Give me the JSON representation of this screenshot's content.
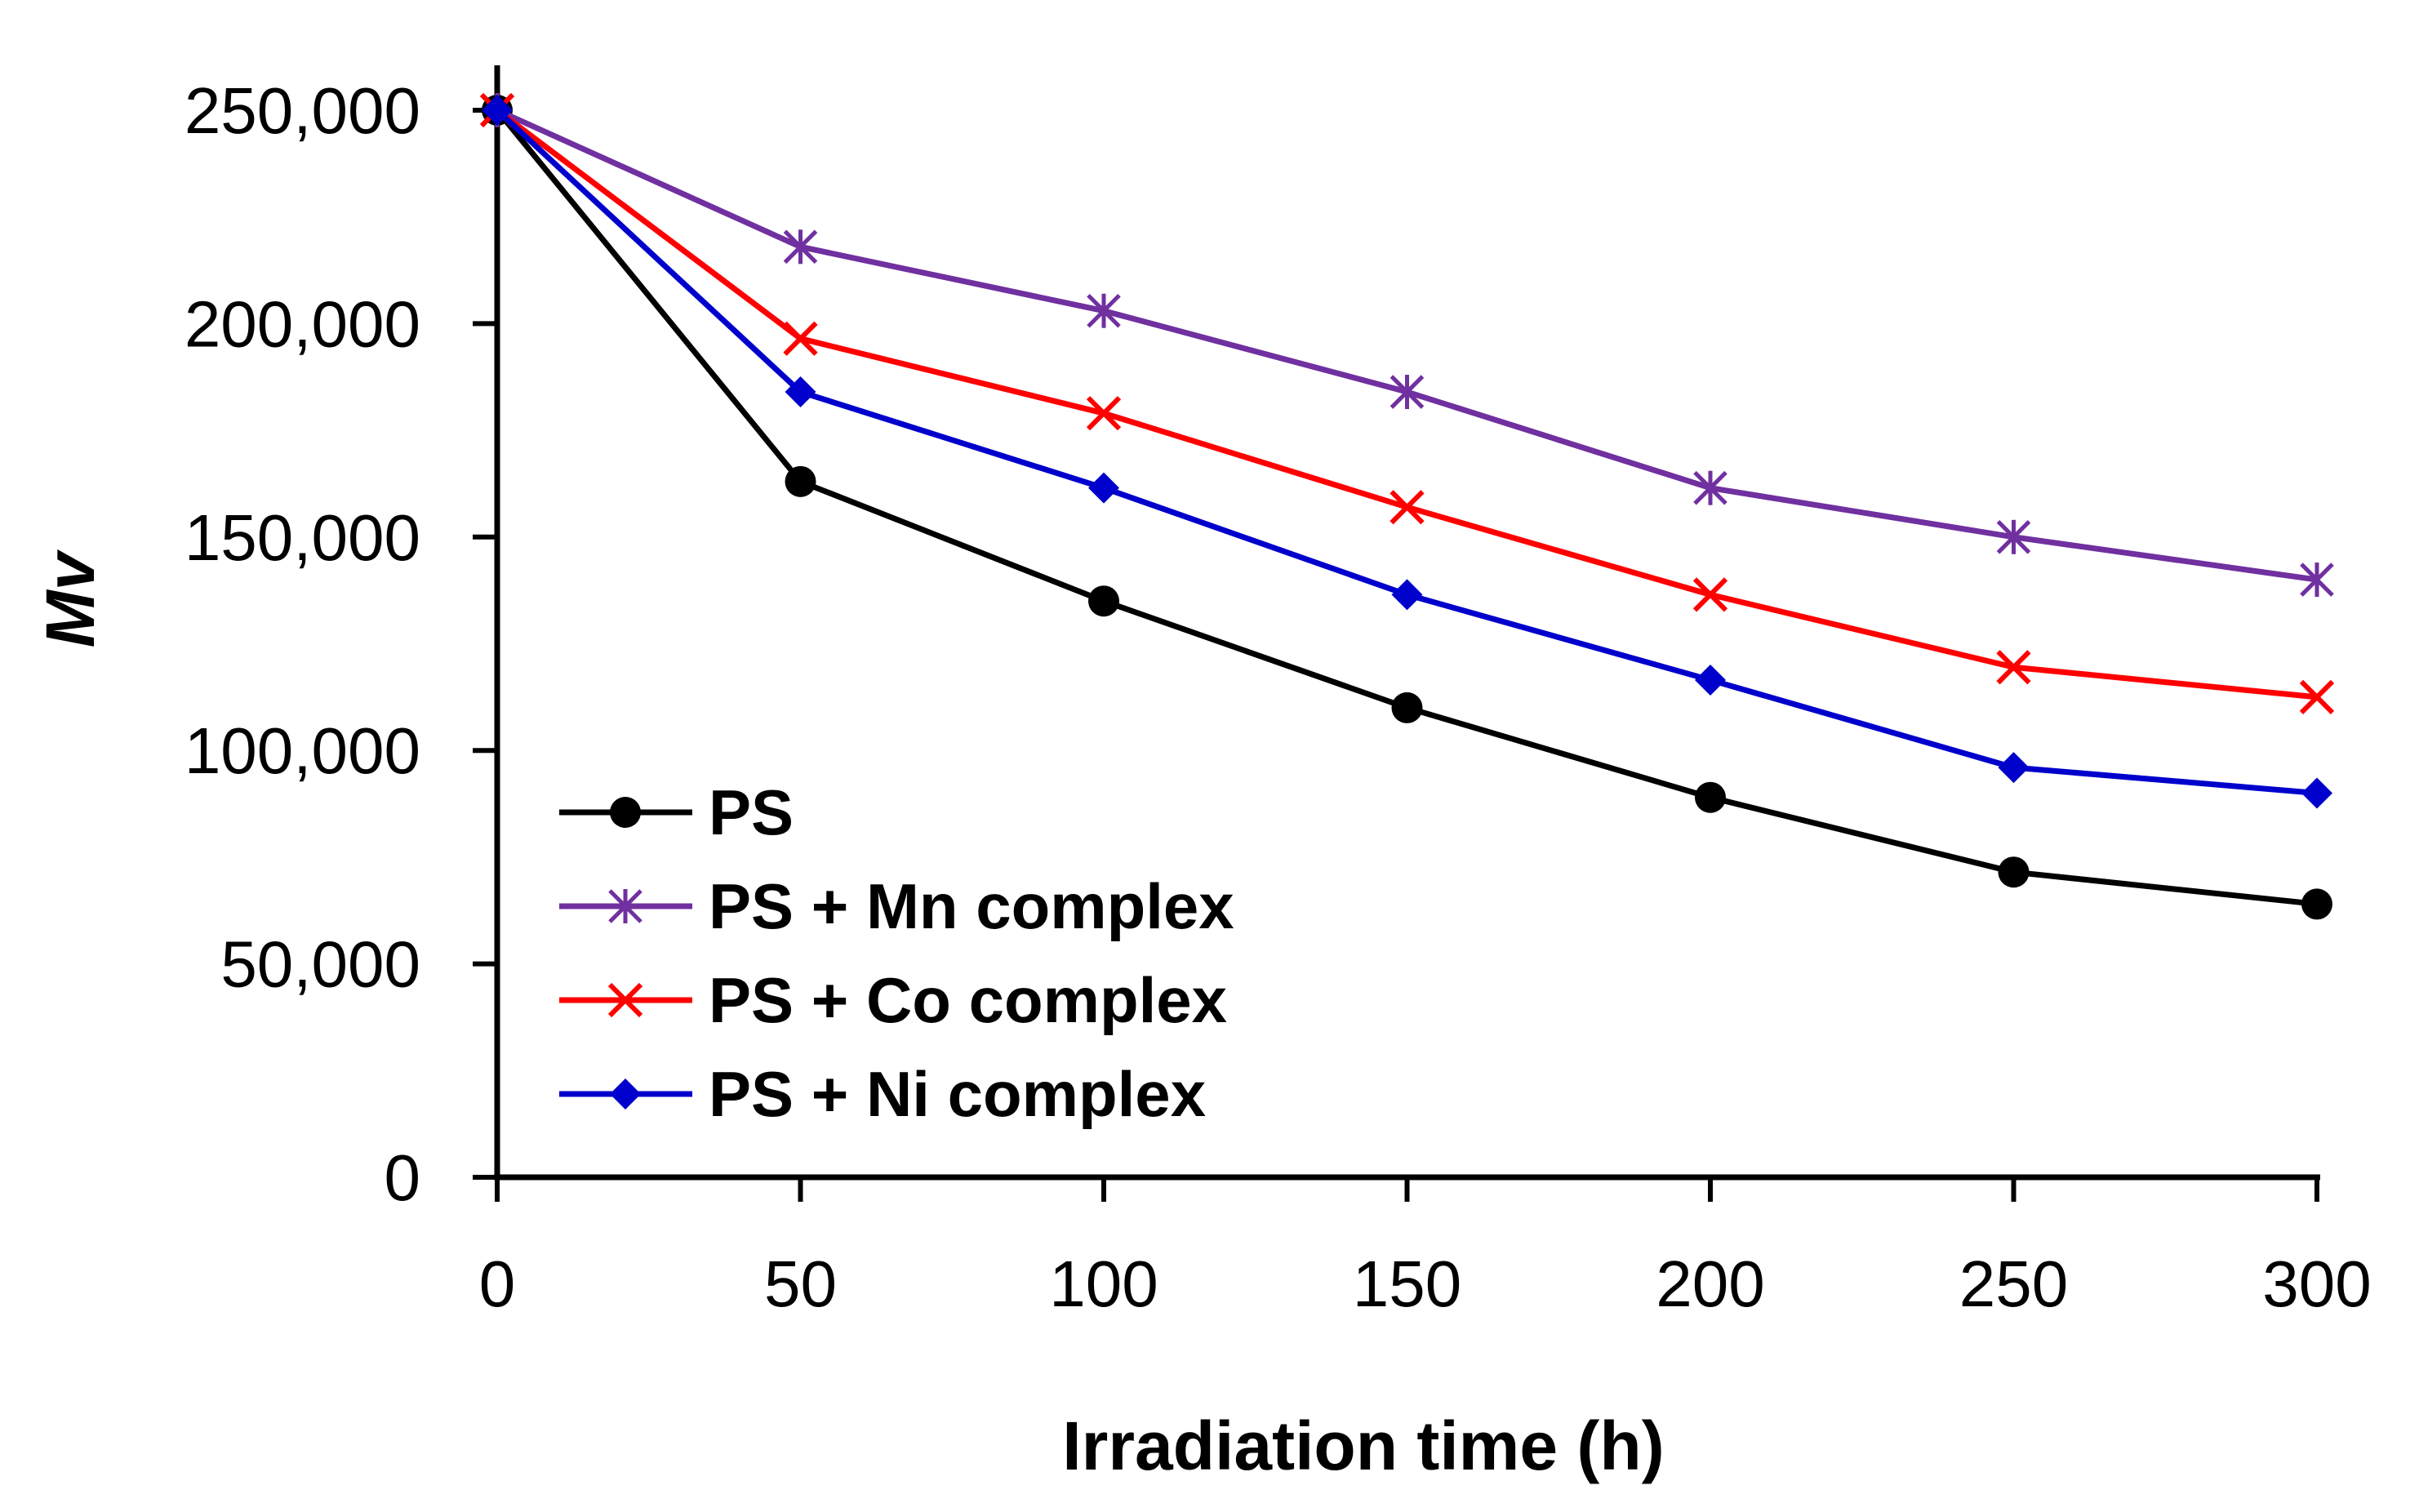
{
  "chart_data": {
    "type": "line",
    "title": "",
    "xlabel": "Irradiation time (h)",
    "ylabel": "Mv",
    "xlim": [
      0,
      300
    ],
    "ylim": [
      0,
      250000
    ],
    "grid": false,
    "legend_position": "lower-left",
    "x": [
      0,
      50,
      100,
      150,
      200,
      250,
      300
    ],
    "x_tick_labels": [
      "0",
      "50",
      "100",
      "150",
      "200",
      "250",
      "300"
    ],
    "y_ticks": [
      0,
      50000,
      100000,
      150000,
      200000,
      250000
    ],
    "y_tick_labels": [
      "0",
      "50,000",
      "100,000",
      "150,000",
      "200,000",
      "250,000"
    ],
    "series": [
      {
        "name": "PS",
        "color": "#000000",
        "marker": "circle",
        "values": [
          250000,
          163000,
          135000,
          110000,
          89000,
          71500,
          64000
        ]
      },
      {
        "name": "PS + Mn complex",
        "color": "#7030A0",
        "marker": "asterisk",
        "values": [
          250000,
          218000,
          203000,
          184000,
          161500,
          150000,
          140000
        ]
      },
      {
        "name": "PS + Co complex",
        "color": "#FF0000",
        "marker": "x",
        "values": [
          250000,
          196500,
          179000,
          157000,
          136500,
          119500,
          112500
        ]
      },
      {
        "name": "PS + Ni complex",
        "color": "#0000CC",
        "marker": "diamond",
        "values": [
          250000,
          184000,
          161500,
          136500,
          116500,
          96000,
          90000
        ]
      }
    ]
  }
}
